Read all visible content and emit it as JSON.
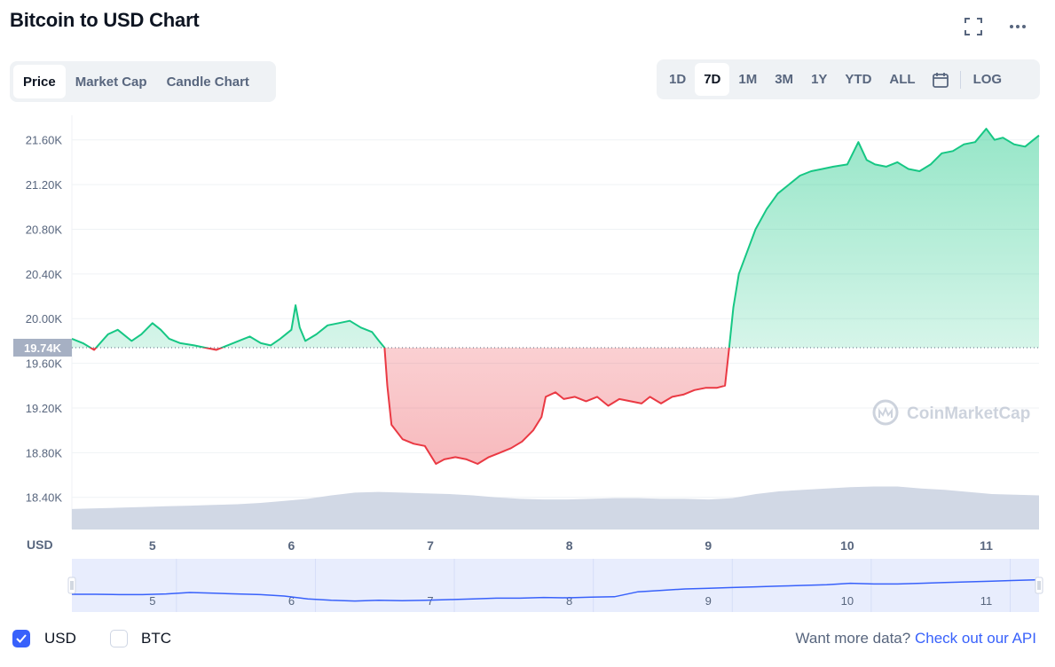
{
  "header": {
    "title": "Bitcoin to USD Chart",
    "fullscreen_icon": "fullscreen-icon",
    "more_icon": "more-horizontal-icon"
  },
  "tabs": [
    {
      "label": "Price",
      "active": true
    },
    {
      "label": "Market Cap",
      "active": false
    },
    {
      "label": "Candle Chart",
      "active": false
    }
  ],
  "ranges": {
    "items": [
      {
        "label": "1D",
        "active": false
      },
      {
        "label": "7D",
        "active": true
      },
      {
        "label": "1M",
        "active": false
      },
      {
        "label": "3M",
        "active": false
      },
      {
        "label": "1Y",
        "active": false
      },
      {
        "label": "YTD",
        "active": false
      },
      {
        "label": "ALL",
        "active": false
      }
    ],
    "calendar_icon": "calendar-icon",
    "log_label": "LOG"
  },
  "chart_data": {
    "type": "line",
    "title": "",
    "xlabel": "",
    "ylabel": "",
    "currency_label": "USD",
    "x_ticks": [
      "5",
      "6",
      "7",
      "8",
      "9",
      "10",
      "11"
    ],
    "x_range": [
      4.42,
      11.38
    ],
    "y_ticks": [
      "18.40K",
      "18.80K",
      "19.20K",
      "19.60K",
      "20.00K",
      "20.40K",
      "20.80K",
      "21.20K",
      "21.60K"
    ],
    "y_tick_values": [
      18400,
      18800,
      19200,
      19600,
      20000,
      20400,
      20800,
      21200,
      21600
    ],
    "ylim": [
      18120,
      21820
    ],
    "baseline": {
      "value": 19740,
      "label": "19.74K"
    },
    "colors": {
      "up": "#16c784",
      "down": "#ea3943",
      "volume": "#cfd6e4",
      "baseline_label_bg": "#a6b0c3",
      "navigator_line": "#3861fb",
      "navigator_fill": "#e8edfd"
    },
    "grid": true,
    "watermark": "CoinMarketCap",
    "series": [
      {
        "x": [
          4.42,
          4.5,
          4.58,
          4.68,
          4.75,
          4.85,
          4.92,
          5.0,
          5.06,
          5.12,
          5.2,
          5.3,
          5.38,
          5.46,
          5.54,
          5.62,
          5.7,
          5.78,
          5.85,
          5.92,
          6.0,
          6.03,
          6.06,
          6.1,
          6.18,
          6.26,
          6.34,
          6.42,
          6.5,
          6.58,
          6.63,
          6.67,
          6.69,
          6.72,
          6.8,
          6.88,
          6.96,
          7.04,
          7.1,
          7.18,
          7.26,
          7.34,
          7.42,
          7.5,
          7.58,
          7.66,
          7.74,
          7.8,
          7.83,
          7.9,
          7.96,
          8.04,
          8.12,
          8.2,
          8.28,
          8.36,
          8.44,
          8.52,
          8.58,
          8.66,
          8.74,
          8.82,
          8.9,
          8.98,
          9.06,
          9.12,
          9.15,
          9.18,
          9.22,
          9.28,
          9.34,
          9.42,
          9.5,
          9.58,
          9.66,
          9.74,
          9.82,
          9.9,
          10.0,
          10.08,
          10.14,
          10.2,
          10.28,
          10.36,
          10.44,
          10.52,
          10.6,
          10.68,
          10.76,
          10.84,
          10.92,
          11.0,
          11.06,
          11.12,
          11.2,
          11.28,
          11.34,
          11.38
        ],
        "y": [
          19820,
          19780,
          19720,
          19860,
          19900,
          19800,
          19860,
          19960,
          19900,
          19820,
          19780,
          19760,
          19740,
          19720,
          19760,
          19800,
          19840,
          19780,
          19760,
          19820,
          19900,
          20120,
          19920,
          19800,
          19860,
          19940,
          19960,
          19980,
          19920,
          19880,
          19800,
          19740,
          19400,
          19050,
          18920,
          18880,
          18860,
          18700,
          18740,
          18760,
          18740,
          18700,
          18760,
          18800,
          18840,
          18900,
          19000,
          19120,
          19300,
          19340,
          19280,
          19300,
          19260,
          19300,
          19220,
          19280,
          19260,
          19240,
          19300,
          19240,
          19300,
          19320,
          19360,
          19380,
          19380,
          19400,
          19740,
          20100,
          20400,
          20600,
          20800,
          20980,
          21120,
          21200,
          21280,
          21320,
          21340,
          21360,
          21380,
          21580,
          21420,
          21380,
          21360,
          21400,
          21340,
          21320,
          21380,
          21480,
          21500,
          21560,
          21580,
          21700,
          21600,
          21620,
          21560,
          21540,
          21600,
          21640
        ]
      }
    ],
    "volume": [
      0.3,
      0.31,
      0.32,
      0.33,
      0.34,
      0.35,
      0.36,
      0.37,
      0.39,
      0.42,
      0.45,
      0.5,
      0.54,
      0.55,
      0.54,
      0.53,
      0.52,
      0.5,
      0.47,
      0.45,
      0.44,
      0.44,
      0.45,
      0.46,
      0.46,
      0.45,
      0.45,
      0.44,
      0.46,
      0.52,
      0.56,
      0.58,
      0.6,
      0.62,
      0.63,
      0.63,
      0.6,
      0.58,
      0.55,
      0.52,
      0.51,
      0.5
    ],
    "navigator": {
      "x_ticks": [
        "5",
        "6",
        "7",
        "8",
        "9",
        "10",
        "11"
      ],
      "y": [
        0.35,
        0.35,
        0.34,
        0.34,
        0.36,
        0.4,
        0.38,
        0.36,
        0.34,
        0.3,
        0.22,
        0.18,
        0.16,
        0.18,
        0.17,
        0.18,
        0.2,
        0.22,
        0.24,
        0.24,
        0.26,
        0.25,
        0.27,
        0.28,
        0.42,
        0.46,
        0.5,
        0.52,
        0.54,
        0.56,
        0.58,
        0.6,
        0.62,
        0.66,
        0.64,
        0.64,
        0.66,
        0.68,
        0.7,
        0.72,
        0.74,
        0.76
      ]
    }
  },
  "footer": {
    "options": [
      {
        "label": "USD",
        "checked": true
      },
      {
        "label": "BTC",
        "checked": false
      }
    ],
    "api_prompt": "Want more data?",
    "api_link": "Check out our API"
  }
}
